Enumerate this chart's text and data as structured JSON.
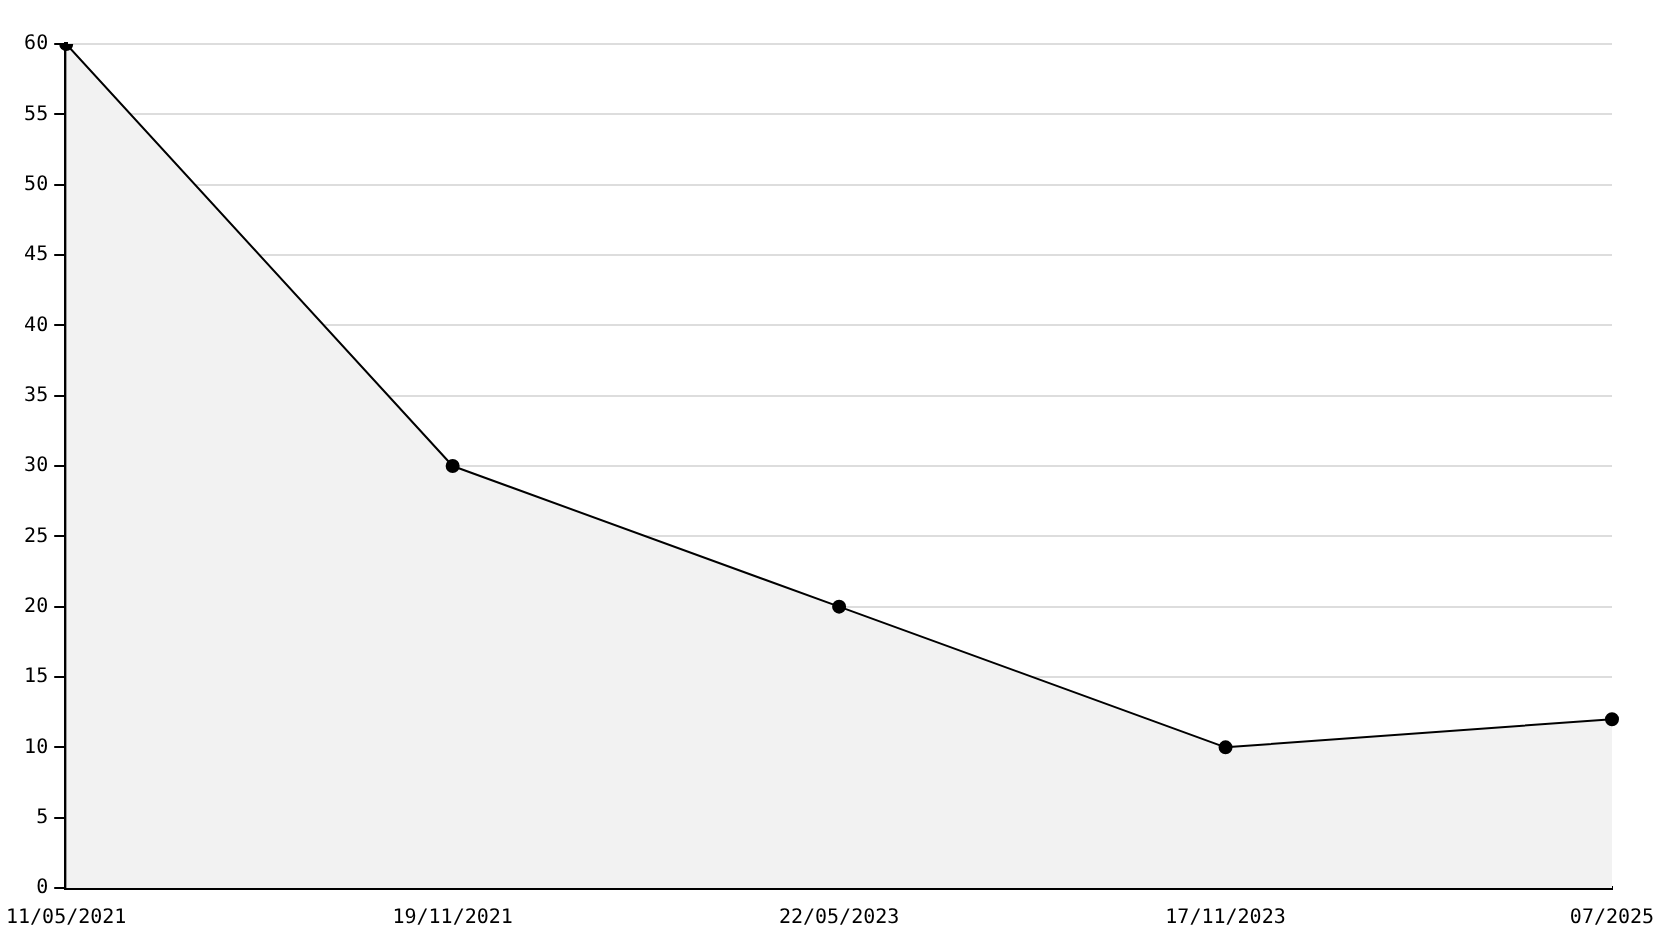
{
  "chart_data": {
    "type": "area",
    "categories": [
      "11/05/2021",
      "19/11/2021",
      "22/05/2023",
      "17/11/2023",
      "07/2025"
    ],
    "series": [
      {
        "color": "#000000",
        "values": [
          60,
          30,
          20,
          10,
          12
        ]
      }
    ],
    "ylim": [
      0,
      60
    ],
    "yticks": [
      0,
      5,
      10,
      15,
      20,
      25,
      30,
      35,
      40,
      45,
      50,
      55,
      60
    ],
    "grid": "y",
    "marker": "circle",
    "line_style": "solid"
  }
}
